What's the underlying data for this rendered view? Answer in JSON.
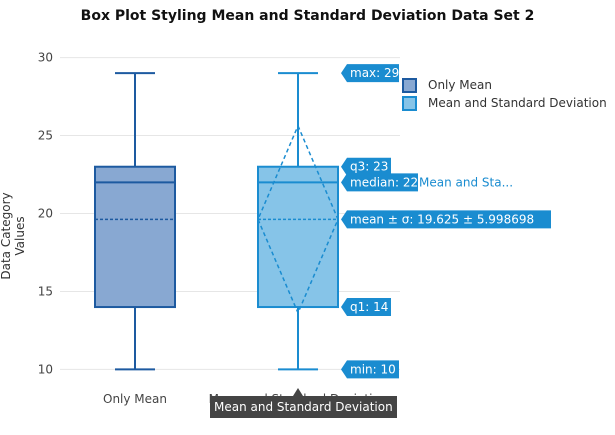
{
  "chart_data": {
    "type": "box",
    "title": "Box Plot Styling Mean and Standard Deviation Data Set 2",
    "ylabel": "Data Category Values",
    "ylim": [
      9,
      31
    ],
    "yticks": [
      10,
      15,
      20,
      25,
      30
    ],
    "grid": true,
    "legend_position": "top-right",
    "categories": [
      "Only Mean",
      "Mean and Standard Deviation"
    ],
    "series": [
      {
        "name": "Only Mean",
        "min": 10,
        "q1": 14,
        "median": 22,
        "q3": 23,
        "max": 29,
        "mean": 19.625,
        "color": "#1d5aa0",
        "fill": "#88a8d2"
      },
      {
        "name": "Mean and Standard Deviation",
        "min": 10,
        "q1": 14,
        "median": 22,
        "q3": 23,
        "max": 29,
        "mean": 19.625,
        "sd": 5.998698,
        "color": "#1a8cd0",
        "fill": "#86c4e8"
      }
    ],
    "hover_labels": {
      "max": "max: 29",
      "q3": "q3: 23",
      "median": "median: 22",
      "median_trace": "Mean and Sta...",
      "mean": "mean ± σ: 19.625 ± 5.998698",
      "q1": "q1: 14",
      "min": "min: 10",
      "label_color": "#1a8cd0"
    },
    "tooltip": "Mean and Standard Deviation"
  }
}
